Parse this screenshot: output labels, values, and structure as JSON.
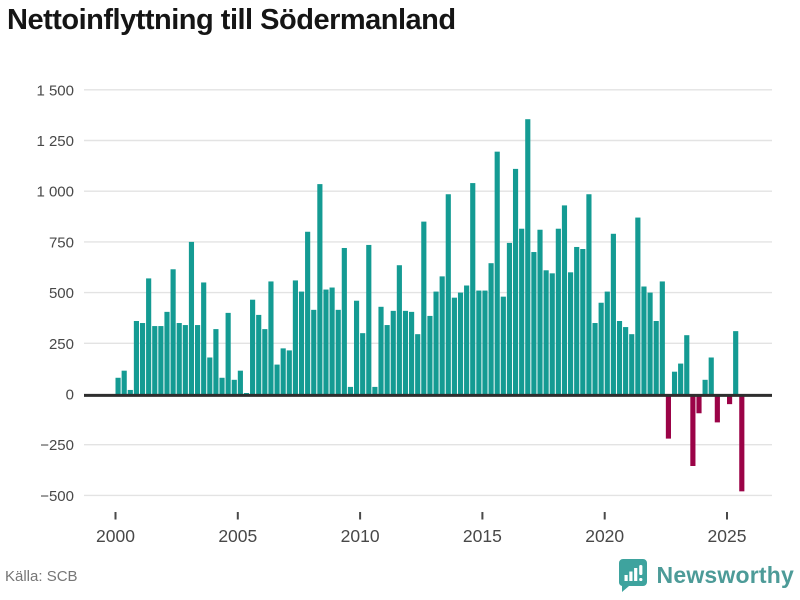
{
  "title": "Nettoinflyttning till Södermanland",
  "source": "Källa: SCB",
  "brand": {
    "name": "Newsworthy",
    "badge_color": "#3EA39E",
    "text_color": "#4D9B98"
  },
  "colors": {
    "positive_bar": "#149B93",
    "negative_bar": "#9B0347",
    "gridline": "#e3e3e3",
    "zero_line": "#2e2e2e",
    "axis_text": "#484848",
    "title_text": "#151515",
    "source_text": "#767676"
  },
  "y_axis": {
    "tick_values": [
      1500,
      1250,
      1000,
      750,
      500,
      250,
      0,
      -250,
      -500
    ],
    "tick_labels": [
      "1 500",
      "1 250",
      "1 000",
      "750",
      "500",
      "250",
      "0",
      "−250",
      "−500"
    ]
  },
  "x_axis": {
    "tick_labels": [
      "2000",
      "2005",
      "2010",
      "2015",
      "2020",
      "2025"
    ]
  },
  "chart_data": {
    "type": "bar",
    "title": "Nettoinflyttning till Södermanland",
    "xlabel": "",
    "ylabel": "",
    "ylim": [
      -500,
      1500
    ],
    "grid": true,
    "legend": "none",
    "x_frequency": "quarterly",
    "quarters": [
      "2000Q1",
      "2000Q2",
      "2000Q3",
      "2000Q4",
      "2001Q1",
      "2001Q2",
      "2001Q3",
      "2001Q4",
      "2002Q1",
      "2002Q2",
      "2002Q3",
      "2002Q4",
      "2003Q1",
      "2003Q2",
      "2003Q3",
      "2003Q4",
      "2004Q1",
      "2004Q2",
      "2004Q3",
      "2004Q4",
      "2005Q1",
      "2005Q2",
      "2005Q3",
      "2005Q4",
      "2006Q1",
      "2006Q2",
      "2006Q3",
      "2006Q4",
      "2007Q1",
      "2007Q2",
      "2007Q3",
      "2007Q4",
      "2008Q1",
      "2008Q2",
      "2008Q3",
      "2008Q4",
      "2009Q1",
      "2009Q2",
      "2009Q3",
      "2009Q4",
      "2010Q1",
      "2010Q2",
      "2010Q3",
      "2010Q4",
      "2011Q1",
      "2011Q2",
      "2011Q3",
      "2011Q4",
      "2012Q1",
      "2012Q2",
      "2012Q3",
      "2012Q4",
      "2013Q1",
      "2013Q2",
      "2013Q3",
      "2013Q4",
      "2014Q1",
      "2014Q2",
      "2014Q3",
      "2014Q4",
      "2015Q1",
      "2015Q2",
      "2015Q3",
      "2015Q4",
      "2016Q1",
      "2016Q2",
      "2016Q3",
      "2016Q4",
      "2017Q1",
      "2017Q2",
      "2017Q3",
      "2017Q4",
      "2018Q1",
      "2018Q2",
      "2018Q3",
      "2018Q4",
      "2019Q1",
      "2019Q2",
      "2019Q3",
      "2019Q4",
      "2020Q1",
      "2020Q2",
      "2020Q3",
      "2020Q4",
      "2021Q1",
      "2021Q2",
      "2021Q3",
      "2021Q4",
      "2022Q1",
      "2022Q2",
      "2022Q3",
      "2022Q4",
      "2023Q1",
      "2023Q2",
      "2023Q3",
      "2023Q4",
      "2024Q1",
      "2024Q2",
      "2024Q3",
      "2024Q4",
      "2025Q1",
      "2025Q2",
      "2025Q3"
    ],
    "values": [
      80,
      115,
      20,
      360,
      350,
      570,
      335,
      335,
      405,
      615,
      350,
      340,
      750,
      340,
      550,
      180,
      320,
      80,
      400,
      70,
      115,
      5,
      465,
      390,
      320,
      555,
      145,
      225,
      215,
      560,
      505,
      800,
      415,
      1035,
      515,
      525,
      415,
      720,
      35,
      460,
      300,
      735,
      35,
      430,
      340,
      410,
      635,
      410,
      405,
      295,
      850,
      385,
      505,
      580,
      985,
      475,
      500,
      535,
      1040,
      510,
      510,
      645,
      1195,
      480,
      745,
      1110,
      815,
      1355,
      700,
      810,
      610,
      595,
      815,
      930,
      600,
      725,
      715,
      985,
      350,
      450,
      505,
      790,
      360,
      330,
      295,
      870,
      530,
      500,
      360,
      555,
      -220,
      110,
      150,
      290,
      -355,
      -95,
      70,
      180,
      -140,
      0,
      -50,
      310,
      -480
    ]
  }
}
